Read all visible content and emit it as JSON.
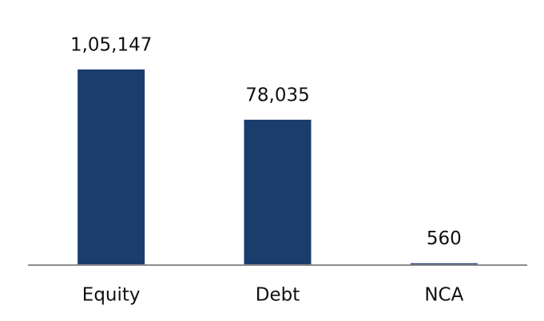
{
  "chart_data": {
    "type": "bar",
    "categories": [
      "Equity",
      "Debt",
      "NCA"
    ],
    "values": [
      105147,
      78035,
      560
    ],
    "value_labels": [
      "1,05,147",
      "78,035",
      "560"
    ],
    "color": "#1b3d6e"
  }
}
